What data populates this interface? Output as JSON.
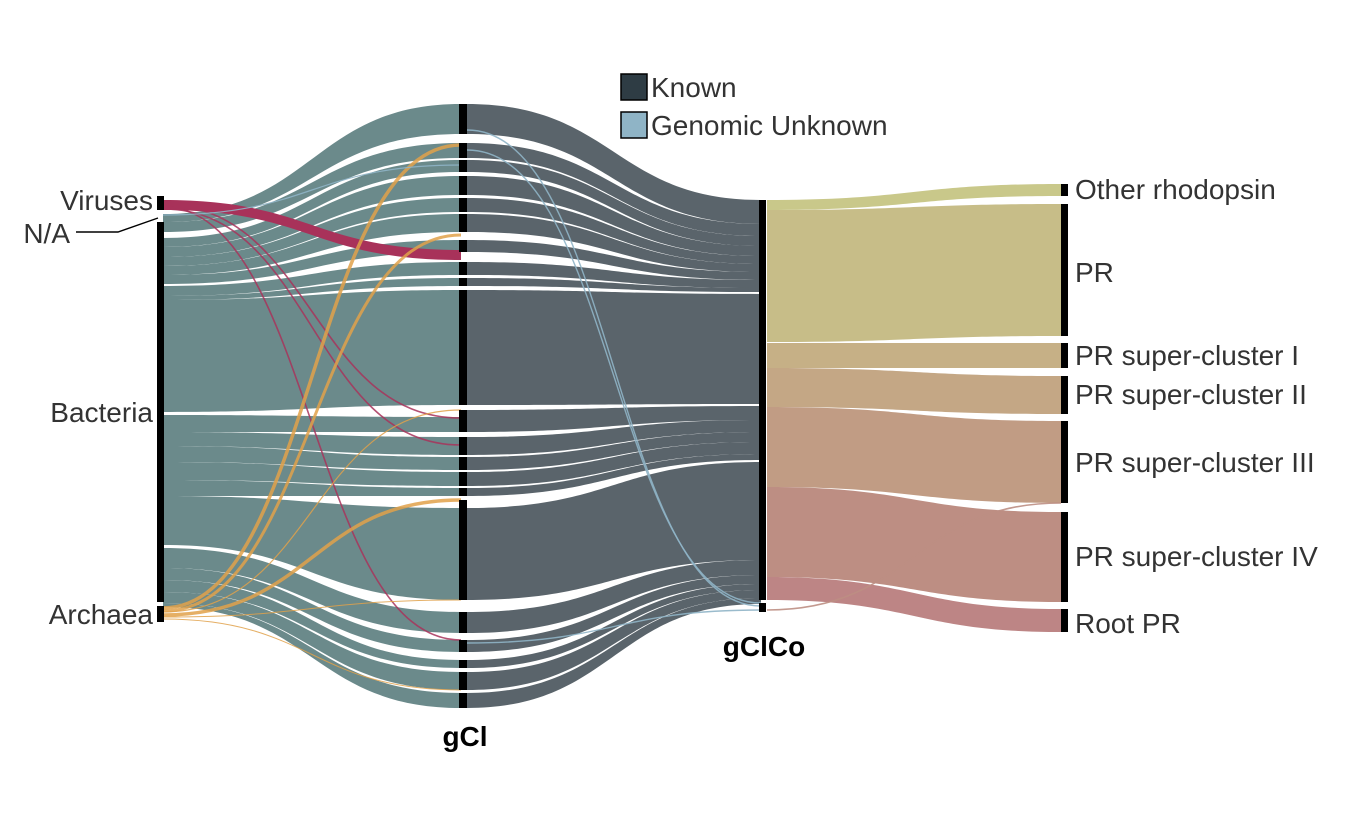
{
  "legend": {
    "known_label": "Known",
    "genomic_unknown_label": "Genomic Unknown",
    "known_color": "#2e3c44",
    "genomic_unknown_color": "#8fb4c6"
  },
  "columns": {
    "gcl_label": "gCl",
    "gclco_label": "gClCo"
  },
  "taxa": {
    "viruses": "Viruses",
    "na": "N/A",
    "bacteria": "Bacteria",
    "archaea": "Archaea"
  },
  "rhodopsins": {
    "other": "Other rhodopsin",
    "pr": "PR",
    "sc1": "PR super-cluster I",
    "sc2": "PR super-cluster II",
    "sc3": "PR super-cluster III",
    "sc4": "PR super-cluster IV",
    "root": "Root PR"
  },
  "colors": {
    "bacteria_flow": "#6b8a8b",
    "known_flow": "#5a646b",
    "viruses_flow": "#a8325a",
    "archaea_flow": "#e1a14a",
    "unknown_flow": "#8fb4c6",
    "other_rhodopsin": "#c9c88a",
    "pr": "#c7bd88",
    "sc1": "#c6b086",
    "sc2": "#c4a785",
    "sc3": "#c19c84",
    "sc4": "#bd8e83",
    "root_pr": "#bd8585"
  }
}
